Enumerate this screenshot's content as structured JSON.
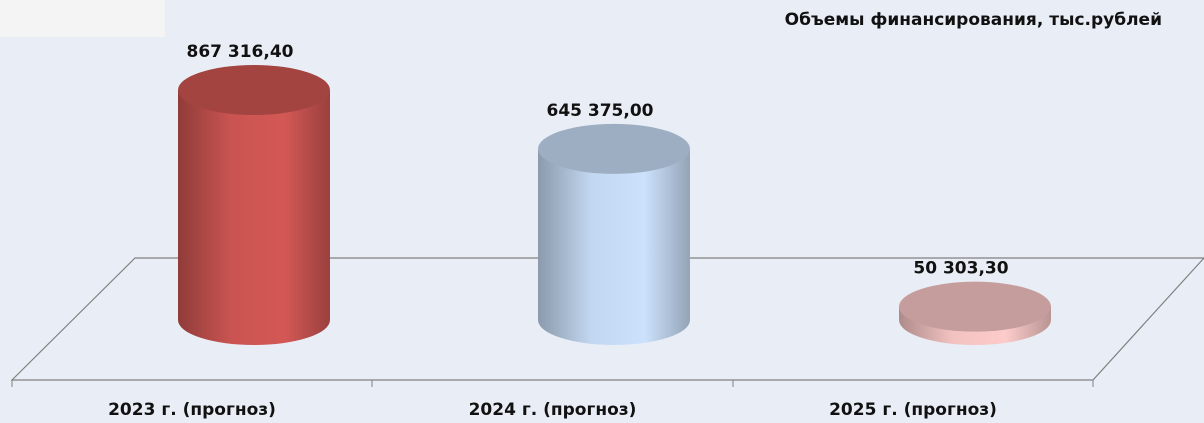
{
  "chart_data": {
    "type": "cylinder",
    "title": "Объемы финансирования, тыс.рублей",
    "categories": [
      "2023 г. (прогноз)",
      "2024 г. (прогноз)",
      "2025 г. (прогноз)"
    ],
    "values": [
      867316.4,
      645375.0,
      50303.3
    ],
    "value_labels": [
      "867 316,40",
      "645 375,00",
      "50 303,30"
    ],
    "colors": [
      "#c0504d",
      "#b9cde5",
      "#e6b9b8"
    ]
  }
}
